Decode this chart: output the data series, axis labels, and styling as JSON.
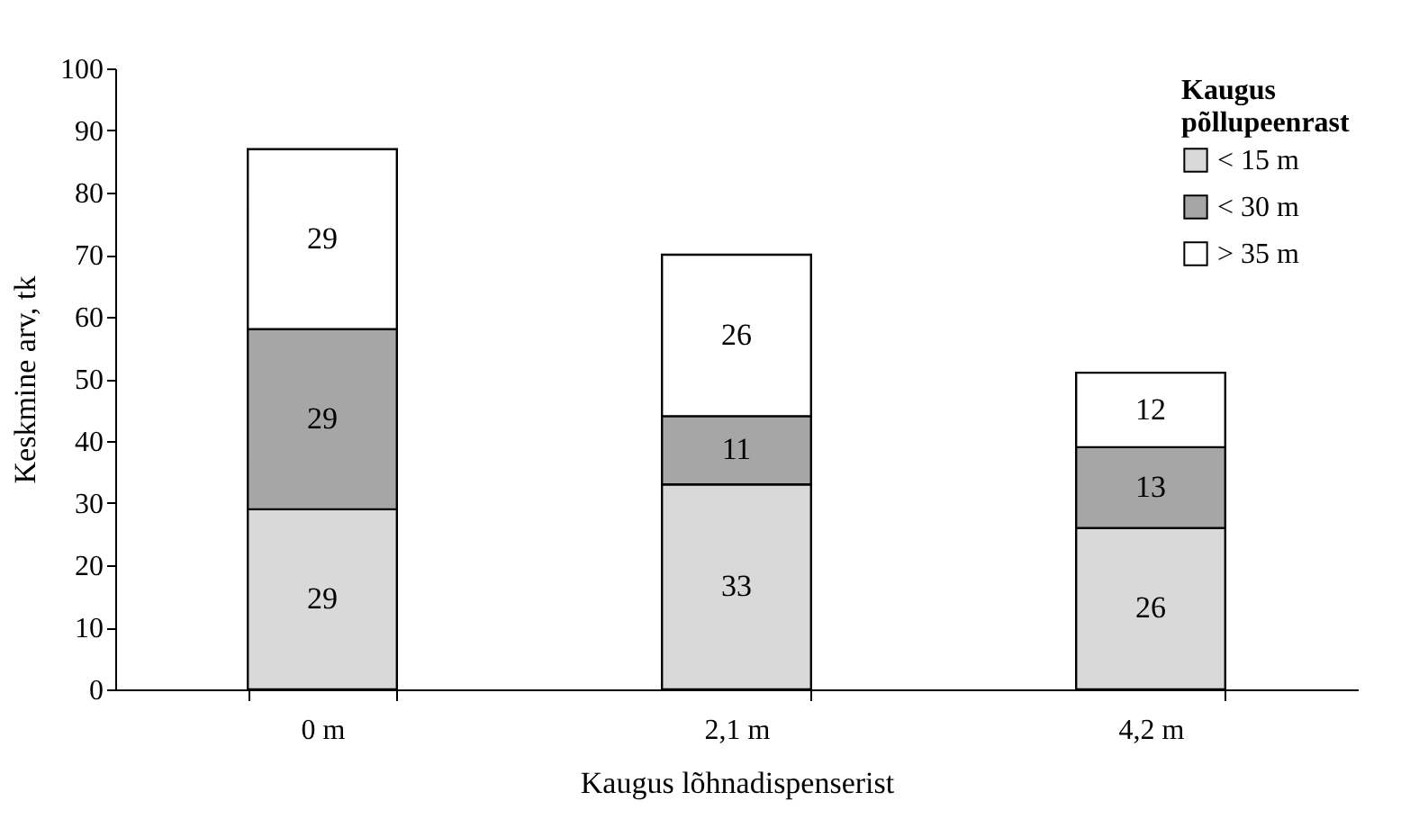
{
  "chart_data": {
    "type": "bar",
    "stacked": true,
    "xlabel": "Kaugus lõhnadispenserist",
    "ylabel": "Keskmine arv, tk",
    "legend_title": "Kaugus põllupeenrast",
    "legend": "top right",
    "data_labels": true,
    "grid": false,
    "categories": [
      "0 m",
      "2,1 m",
      "4,2 m"
    ],
    "ylim": [
      0,
      100
    ],
    "yticks": [
      0,
      10,
      20,
      30,
      40,
      50,
      60,
      70,
      80,
      90,
      100
    ],
    "series": [
      {
        "name": "< 15 m",
        "color": "#d9d9d9",
        "values": [
          29,
          33,
          26
        ]
      },
      {
        "name": "< 30 m",
        "color": "#a6a6a6",
        "values": [
          29,
          11,
          13
        ]
      },
      {
        "name": "> 35 m",
        "color": "#ffffff",
        "values": [
          29,
          26,
          12
        ]
      }
    ]
  }
}
